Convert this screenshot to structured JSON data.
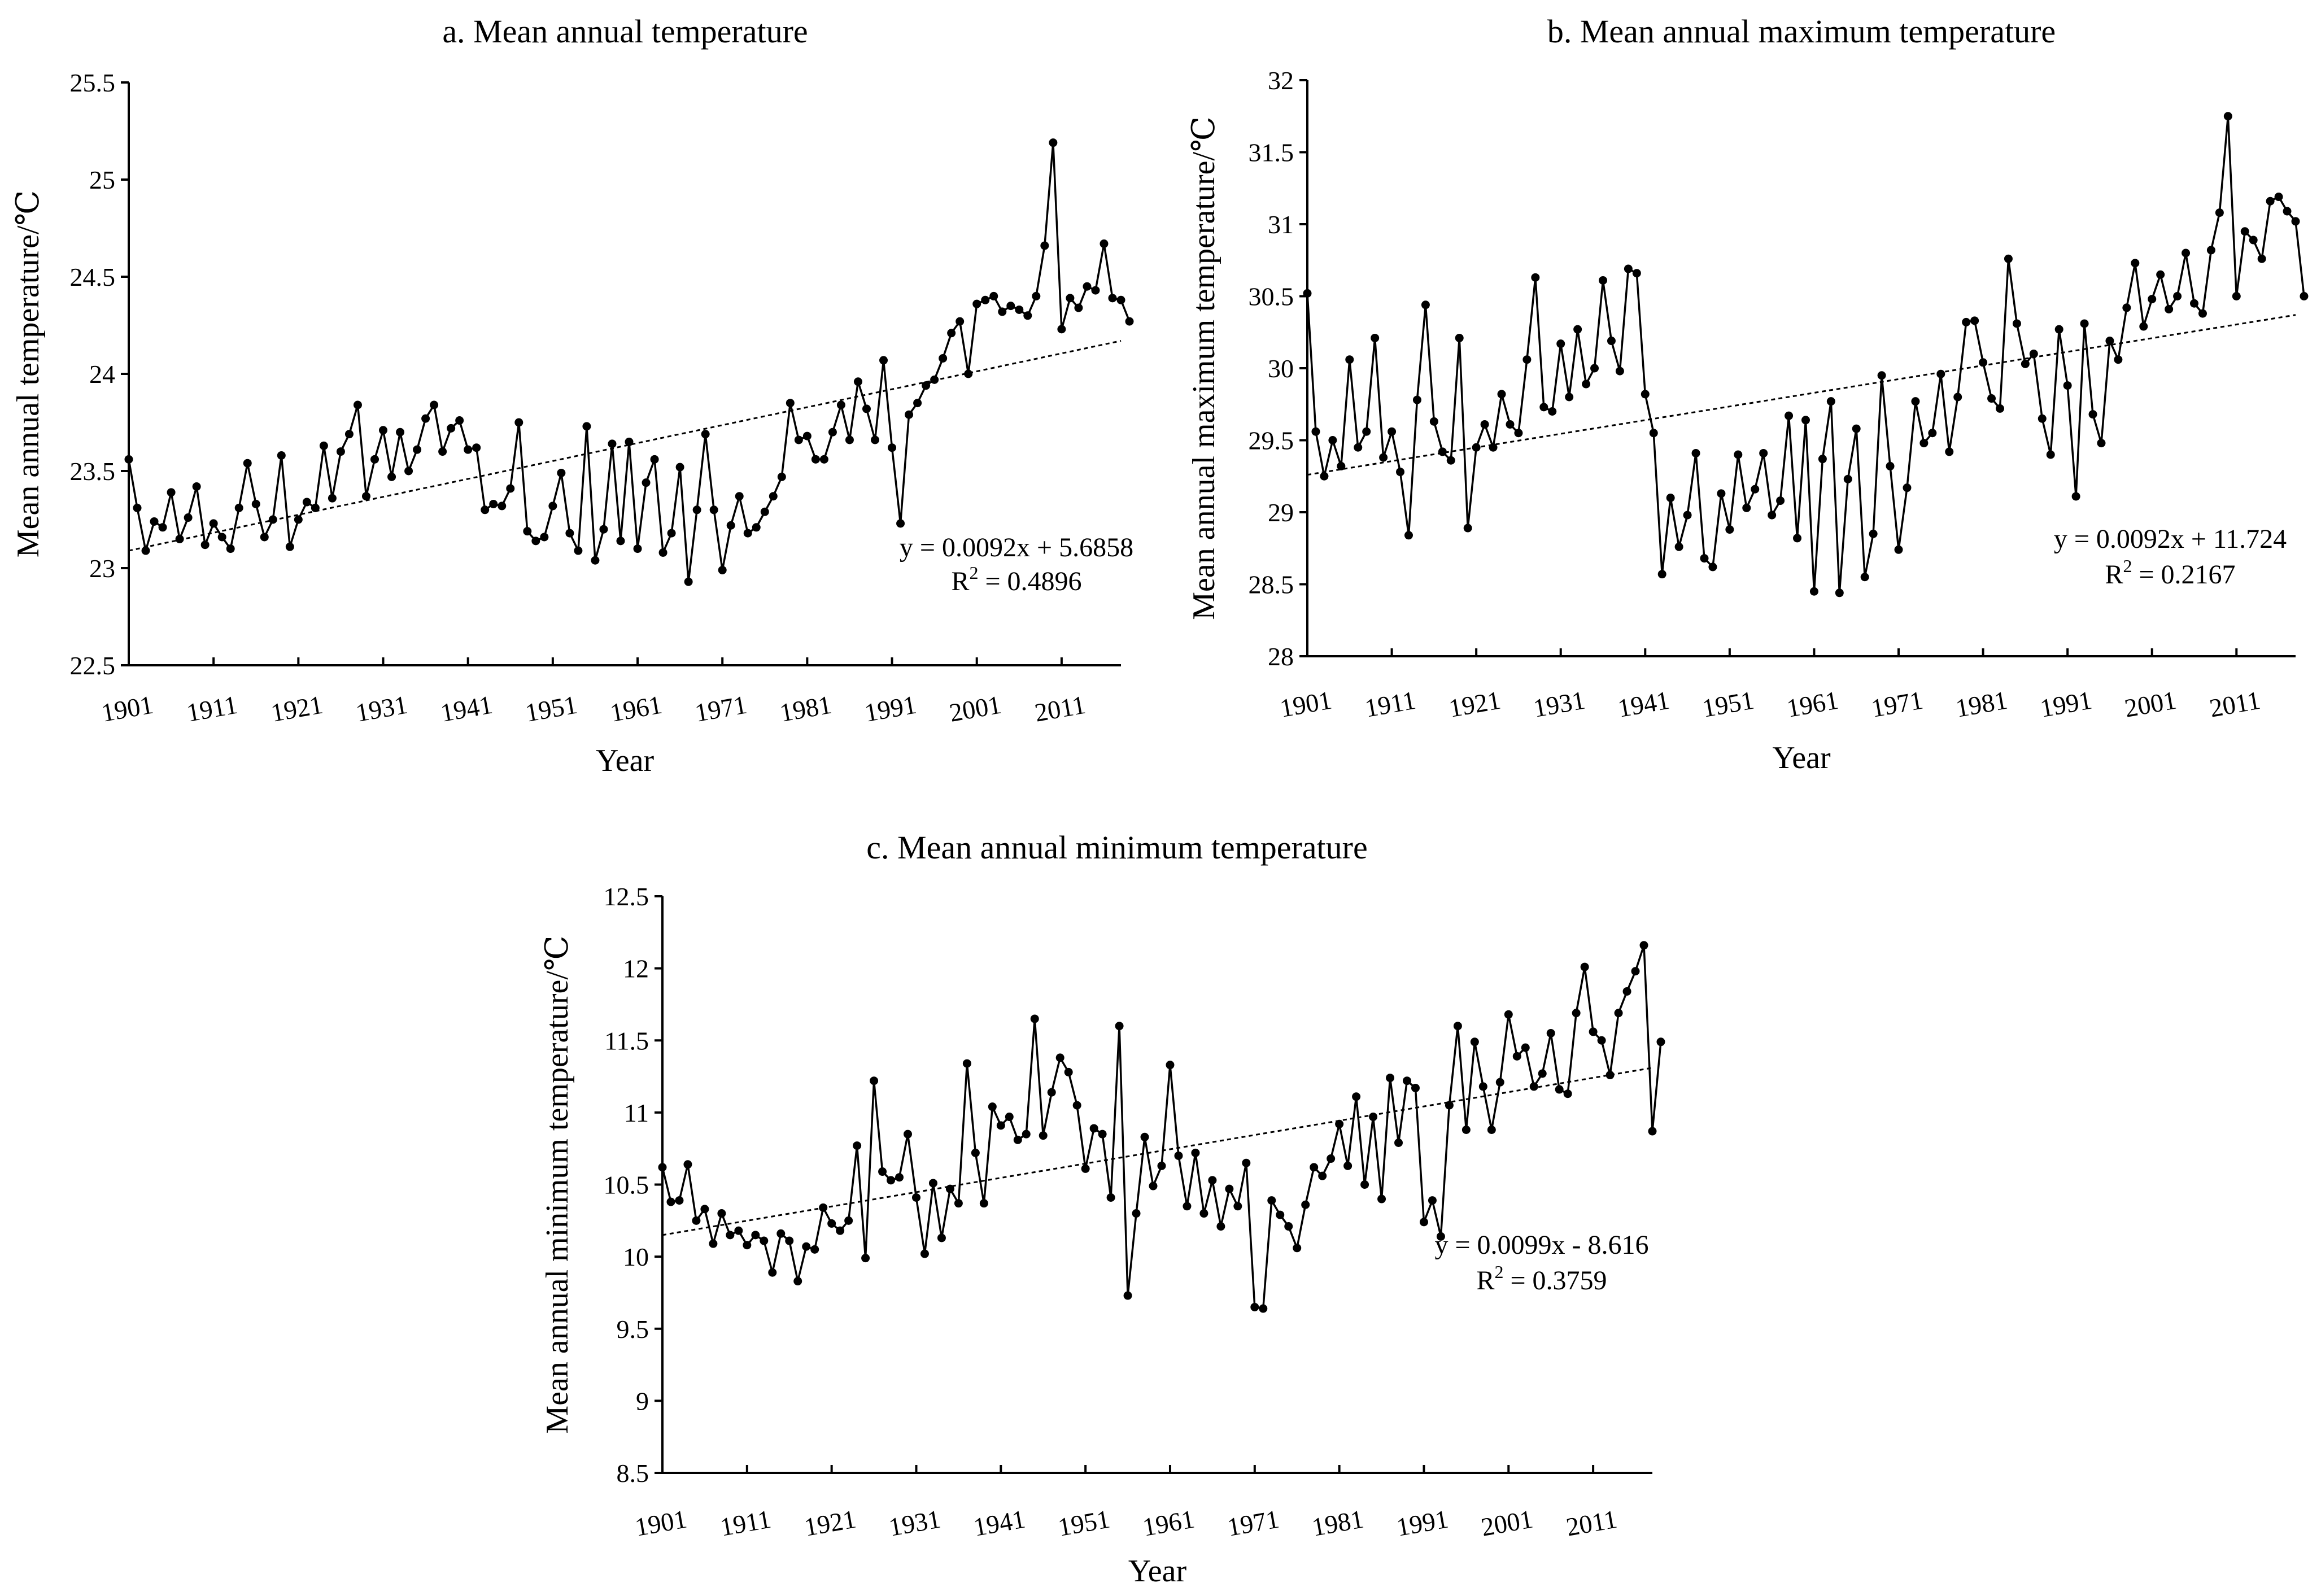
{
  "chart_data": [
    {
      "id": "a",
      "type": "line",
      "title": "a. Mean annual temperature",
      "xlabel": "Year",
      "ylabel": "Mean annual temperature/℃",
      "xlim": [
        1901,
        2018
      ],
      "ylim": [
        22.5,
        25.5
      ],
      "yticks": [
        22.5,
        23,
        23.5,
        24,
        24.5,
        25,
        25.5
      ],
      "ytick_labels": [
        "22.5",
        "23",
        "23.5",
        "24",
        "24.5",
        "25",
        "25.5"
      ],
      "xticks": [
        1901,
        1911,
        1921,
        1931,
        1941,
        1951,
        1961,
        1971,
        1981,
        1991,
        2001,
        2011
      ],
      "xtick_labels": [
        "1901",
        "1911",
        "1921",
        "1931",
        "1941",
        "1951",
        "1961",
        "1971",
        "1981",
        "1991",
        "2001",
        "2011"
      ],
      "x_start": 1901,
      "values": [
        23.56,
        23.31,
        23.09,
        23.24,
        23.21,
        23.39,
        23.15,
        23.26,
        23.42,
        23.12,
        23.23,
        23.16,
        23.1,
        23.31,
        23.54,
        23.33,
        23.16,
        23.25,
        23.58,
        23.11,
        23.25,
        23.34,
        23.31,
        23.63,
        23.36,
        23.6,
        23.69,
        23.84,
        23.37,
        23.56,
        23.71,
        23.47,
        23.7,
        23.5,
        23.61,
        23.77,
        23.84,
        23.6,
        23.72,
        23.76,
        23.61,
        23.62,
        23.3,
        23.33,
        23.32,
        23.41,
        23.75,
        23.19,
        23.14,
        23.16,
        23.32,
        23.49,
        23.18,
        23.09,
        23.73,
        23.04,
        23.2,
        23.64,
        23.14,
        23.65,
        23.1,
        23.44,
        23.56,
        23.08,
        23.18,
        23.52,
        22.93,
        23.3,
        23.69,
        23.3,
        22.99,
        23.22,
        23.37,
        23.18,
        23.21,
        23.29,
        23.37,
        23.47,
        23.85,
        23.66,
        23.68,
        23.56,
        23.56,
        23.7,
        23.84,
        23.66,
        23.96,
        23.82,
        23.66,
        24.07,
        23.62,
        23.23,
        23.79,
        23.85,
        23.94,
        23.97,
        24.08,
        24.21,
        24.27,
        24.0,
        24.36,
        24.38,
        24.4,
        24.32,
        24.35,
        24.33,
        24.3,
        24.4,
        24.66,
        25.19,
        24.23,
        24.39,
        24.34,
        24.45,
        24.43,
        24.67,
        24.39,
        24.38,
        24.27
      ],
      "trend": {
        "slope": 0.0092,
        "intercept": 5.6858
      },
      "trend_y": [
        23.09,
        24.17
      ],
      "equation": "y = 0.0092x + 5.6858",
      "r2_prefix": "R",
      "r2_exp": "2",
      "r2_value": " = 0.4896"
    },
    {
      "id": "b",
      "type": "line",
      "title": "b. Mean annual maximum temperature",
      "xlabel": "Year",
      "ylabel": "Mean annual maximum temperature/℃",
      "xlim": [
        1901,
        2018
      ],
      "ylim": [
        28,
        32
      ],
      "yticks": [
        28,
        28.5,
        29,
        29.5,
        30,
        30.5,
        31,
        31.5,
        32
      ],
      "ytick_labels": [
        "28",
        "28.5",
        "29",
        "29.5",
        "30",
        "30.5",
        "31",
        "31.5",
        "32"
      ],
      "xticks": [
        1901,
        1911,
        1921,
        1931,
        1941,
        1951,
        1961,
        1971,
        1981,
        1991,
        2001,
        2011
      ],
      "xtick_labels": [
        "1901",
        "1911",
        "1921",
        "1931",
        "1941",
        "1951",
        "1961",
        "1971",
        "1981",
        "1991",
        "2001",
        "2011"
      ],
      "x_start": 1901,
      "values": [
        30.52,
        29.56,
        29.25,
        29.5,
        29.32,
        30.06,
        29.45,
        29.56,
        30.21,
        29.38,
        29.56,
        29.28,
        28.84,
        29.78,
        30.44,
        29.63,
        29.42,
        29.36,
        30.21,
        28.89,
        29.45,
        29.61,
        29.45,
        29.82,
        29.61,
        29.55,
        30.06,
        30.63,
        29.73,
        29.7,
        30.17,
        29.8,
        30.27,
        29.89,
        30.0,
        30.61,
        30.19,
        29.98,
        30.69,
        30.66,
        29.82,
        29.55,
        28.57,
        29.1,
        28.76,
        28.98,
        29.41,
        28.68,
        28.62,
        29.13,
        28.88,
        29.4,
        29.03,
        29.16,
        29.41,
        28.98,
        29.08,
        29.67,
        28.82,
        29.64,
        28.45,
        29.37,
        29.77,
        28.44,
        29.23,
        29.58,
        28.55,
        28.85,
        29.95,
        29.32,
        28.74,
        29.17,
        29.77,
        29.48,
        29.55,
        29.96,
        29.42,
        29.8,
        30.32,
        30.33,
        30.04,
        29.79,
        29.72,
        30.76,
        30.31,
        30.03,
        30.1,
        29.65,
        29.4,
        30.27,
        29.88,
        29.11,
        30.31,
        29.68,
        29.48,
        30.19,
        30.06,
        30.42,
        30.73,
        30.29,
        30.48,
        30.65,
        30.41,
        30.5,
        30.8,
        30.45,
        30.38,
        30.82,
        31.08,
        31.75,
        30.5,
        30.95,
        30.89,
        30.76,
        31.16,
        31.19,
        31.09,
        31.02,
        30.5
      ],
      "trend": {
        "slope": 0.0092,
        "intercept": 11.724
      },
      "trend_y": [
        29.26,
        30.37
      ],
      "equation": "y = 0.0092x + 11.724",
      "r2_prefix": "R",
      "r2_exp": "2",
      "r2_value": " = 0.2167"
    },
    {
      "id": "c",
      "type": "line",
      "title": "c. Mean annual minimum temperature",
      "xlabel": "Year",
      "ylabel": "Mean annual minimum temperature/℃",
      "xlim": [
        1901,
        2018
      ],
      "ylim": [
        8.5,
        12.5
      ],
      "yticks": [
        8.5,
        9,
        9.5,
        10,
        10.5,
        11,
        11.5,
        12,
        12.5
      ],
      "ytick_labels": [
        "8.5",
        "9",
        "9.5",
        "10",
        "10.5",
        "11",
        "11.5",
        "12",
        "12.5"
      ],
      "xticks": [
        1901,
        1911,
        1921,
        1931,
        1941,
        1951,
        1961,
        1971,
        1981,
        1991,
        2001,
        2011
      ],
      "xtick_labels": [
        "1901",
        "1911",
        "1921",
        "1931",
        "1941",
        "1951",
        "1961",
        "1971",
        "1981",
        "1991",
        "2001",
        "2011"
      ],
      "x_start": 1901,
      "values": [
        10.62,
        10.38,
        10.39,
        10.64,
        10.25,
        10.33,
        10.09,
        10.3,
        10.15,
        10.18,
        10.08,
        10.15,
        10.11,
        9.89,
        10.16,
        10.11,
        9.83,
        10.07,
        10.05,
        10.34,
        10.23,
        10.18,
        10.25,
        10.77,
        9.99,
        11.22,
        10.59,
        10.53,
        10.55,
        10.85,
        10.41,
        10.02,
        10.51,
        10.13,
        10.47,
        10.37,
        11.34,
        10.72,
        10.37,
        11.04,
        10.91,
        10.97,
        10.81,
        10.85,
        11.65,
        10.84,
        11.14,
        11.38,
        11.28,
        11.05,
        10.61,
        10.89,
        10.85,
        10.41,
        11.6,
        9.73,
        10.3,
        10.83,
        10.49,
        10.63,
        11.33,
        10.7,
        10.35,
        10.72,
        10.3,
        10.53,
        10.21,
        10.47,
        10.35,
        10.65,
        9.65,
        9.64,
        10.39,
        10.29,
        10.21,
        10.06,
        10.36,
        10.62,
        10.56,
        10.68,
        10.92,
        10.63,
        11.11,
        10.5,
        10.97,
        10.4,
        11.24,
        10.79,
        11.22,
        11.17,
        10.24,
        10.39,
        10.14,
        11.05,
        11.6,
        10.88,
        11.49,
        11.18,
        10.88,
        11.21,
        11.68,
        11.39,
        11.45,
        11.18,
        11.27,
        11.55,
        11.16,
        11.13,
        11.69,
        12.01,
        11.56,
        11.5,
        11.26,
        11.69,
        11.84,
        11.98,
        12.16,
        10.87,
        11.49
      ],
      "trend": {
        "slope": 0.0099,
        "intercept": -8.616
      },
      "trend_y": [
        10.15,
        11.31
      ],
      "equation": "y = 0.0099x - 8.616",
      "r2_prefix": "R",
      "r2_exp": "2",
      "r2_value": " = 0.3759"
    }
  ]
}
